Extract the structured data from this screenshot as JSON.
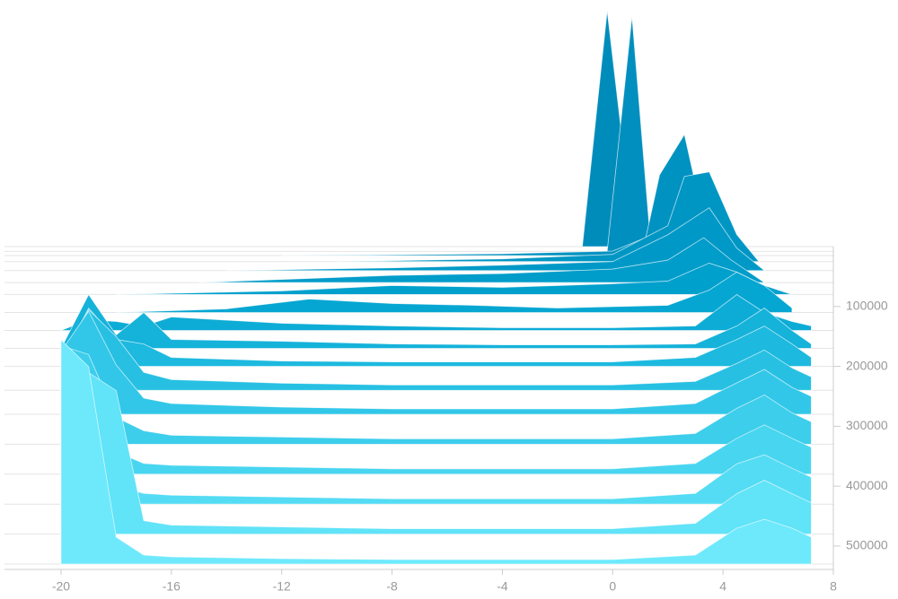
{
  "chart_data": {
    "type": "ridgeline",
    "xlim": [
      -22.05,
      8
    ],
    "xticks": [
      -20,
      -16,
      -12,
      -8,
      -4,
      0,
      4,
      8
    ],
    "ylim": [
      0,
      539000
    ],
    "yticks": [
      100000,
      200000,
      300000,
      400000,
      500000
    ],
    "series": [
      {
        "step": 0,
        "color": "#008cbb",
        "x": [
          -1.1,
          -0.2,
          0.8
        ],
        "values": [
          0,
          263,
          0
        ]
      },
      {
        "step": 8000,
        "color": "#008fbe",
        "x": [
          -0.2,
          0.7,
          1.4
        ],
        "values": [
          0,
          262,
          0
        ]
      },
      {
        "step": 15000,
        "color": "#0092c1",
        "x": [
          -12,
          -4,
          0,
          1.2,
          1.7,
          2.6,
          3.0,
          4.2
        ],
        "values": [
          0,
          2,
          5,
          20,
          90,
          135,
          80,
          0
        ]
      },
      {
        "step": 25000,
        "color": "#0096c4",
        "x": [
          -10,
          -4,
          0,
          2,
          2.6,
          3.5,
          4.5,
          5.3
        ],
        "values": [
          0,
          3,
          8,
          40,
          95,
          100,
          30,
          0
        ]
      },
      {
        "step": 40000,
        "color": "#0099c7",
        "x": [
          -14,
          -8,
          -4,
          0,
          2,
          3.5,
          4.5,
          5.5
        ],
        "values": [
          0,
          3,
          6,
          10,
          40,
          70,
          25,
          0
        ]
      },
      {
        "step": 60000,
        "color": "#009cca",
        "x": [
          -15,
          -8,
          -4,
          0,
          2,
          3.3,
          4.3,
          5.5
        ],
        "values": [
          0,
          8,
          10,
          15,
          25,
          50,
          25,
          0
        ]
      },
      {
        "step": 80000,
        "color": "#00a0cd",
        "x": [
          -18,
          -12,
          -8,
          -4,
          0,
          2,
          3.5,
          4.5,
          5.5,
          6.5
        ],
        "values": [
          0,
          4,
          10,
          8,
          12,
          15,
          35,
          25,
          10,
          0
        ]
      },
      {
        "step": 110000,
        "color": "#06a6d2",
        "x": [
          -18,
          -14,
          -11,
          -8,
          -5,
          -2,
          2,
          3.5,
          4.5,
          5.5,
          6.5
        ],
        "values": [
          0,
          4,
          15,
          10,
          8,
          5,
          8,
          25,
          45,
          30,
          5
        ]
      },
      {
        "step": 140000,
        "color": "#0dacd6",
        "x": [
          -20,
          -19,
          -18,
          -17,
          -16,
          -12,
          -8,
          -4,
          0,
          3,
          4.5,
          5.5,
          6.5,
          7.2
        ],
        "values": [
          0,
          12,
          10,
          5,
          15,
          8,
          5,
          3,
          3,
          5,
          40,
          20,
          10,
          5
        ]
      },
      {
        "step": 170000,
        "color": "#15b2da",
        "x": [
          -20,
          -19,
          -18,
          -17,
          -16,
          -12,
          -8,
          -4,
          0,
          3,
          4.5,
          5.5,
          6.5,
          7.2
        ],
        "values": [
          0,
          60,
          15,
          40,
          10,
          8,
          5,
          4,
          4,
          5,
          25,
          45,
          20,
          5
        ]
      },
      {
        "step": 200000,
        "color": "#1db9df",
        "x": [
          -20,
          -19,
          -18,
          -17,
          -16,
          -12,
          -8,
          -4,
          0,
          3,
          4.5,
          5.5,
          6.5,
          7.2
        ],
        "values": [
          5,
          65,
          30,
          25,
          10,
          6,
          5,
          5,
          5,
          10,
          30,
          45,
          25,
          10
        ]
      },
      {
        "step": 240000,
        "color": "#27c0e3",
        "x": [
          -20,
          -19,
          -18,
          -17,
          -16,
          -12,
          -8,
          -4,
          0,
          3,
          4.5,
          5.5,
          6.5,
          7.2
        ],
        "values": [
          30,
          90,
          60,
          20,
          12,
          8,
          6,
          6,
          6,
          10,
          30,
          45,
          25,
          15
        ]
      },
      {
        "step": 280000,
        "color": "#32c7e8",
        "x": [
          -20,
          -19,
          -18,
          -17,
          -16,
          -12,
          -8,
          -4,
          0,
          3,
          4.5,
          5.5,
          6.5,
          7.2
        ],
        "values": [
          70,
          115,
          55,
          18,
          12,
          8,
          6,
          6,
          6,
          12,
          35,
          50,
          30,
          20
        ]
      },
      {
        "step": 330000,
        "color": "#3dceec",
        "x": [
          -20,
          -19,
          -18,
          -17,
          -16,
          -12,
          -8,
          -4,
          0,
          3,
          4.5,
          5.5,
          6.5,
          7.2
        ],
        "values": [
          110,
          100,
          30,
          15,
          10,
          8,
          6,
          6,
          6,
          12,
          40,
          55,
          35,
          25
        ]
      },
      {
        "step": 380000,
        "color": "#48d5f0",
        "x": [
          -20,
          -19,
          -18,
          -17,
          -16,
          -12,
          -8,
          -4,
          0,
          3,
          4.5,
          5.5,
          6.5,
          7.2
        ],
        "values": [
          140,
          90,
          25,
          12,
          10,
          8,
          6,
          6,
          6,
          12,
          40,
          55,
          40,
          30
        ]
      },
      {
        "step": 430000,
        "color": "#54dcf4",
        "x": [
          -20,
          -19,
          -18,
          -17,
          -16,
          -12,
          -8,
          -4,
          0,
          3,
          4.5,
          5.5,
          6.5,
          7.2
        ],
        "values": [
          160,
          80,
          20,
          12,
          10,
          8,
          6,
          6,
          6,
          12,
          45,
          55,
          40,
          30
        ]
      },
      {
        "step": 480000,
        "color": "#61e3f8",
        "x": [
          -20,
          -19,
          -18,
          -17,
          -16,
          -12,
          -8,
          -4,
          0,
          3,
          4.5,
          5.5,
          6.5,
          7.2
        ],
        "values": [
          200,
          180,
          160,
          15,
          10,
          8,
          6,
          6,
          6,
          12,
          45,
          60,
          45,
          35
        ]
      },
      {
        "step": 530000,
        "color": "#6ee9fc",
        "x": [
          -20,
          -19,
          -18,
          -17,
          -16,
          -12,
          -8,
          -4,
          0,
          3,
          4.5,
          5.5,
          6.5,
          7.2
        ],
        "values": [
          250,
          220,
          30,
          10,
          8,
          6,
          5,
          5,
          5,
          10,
          40,
          50,
          40,
          30
        ]
      }
    ]
  }
}
